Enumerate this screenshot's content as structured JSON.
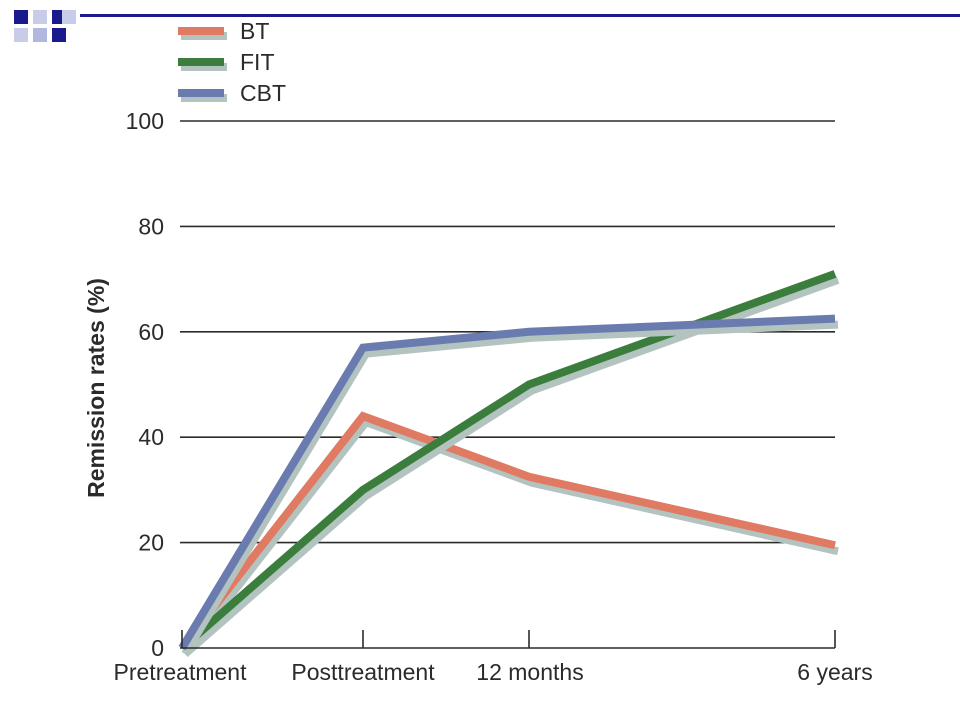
{
  "chart_data": {
    "type": "line",
    "categories": [
      "Pretreatment",
      "Posttreatment",
      "12 months",
      "6 years"
    ],
    "x_positions": [
      0,
      1,
      2,
      5.6
    ],
    "series": [
      {
        "name": "BT",
        "values": [
          0,
          44,
          32.5,
          19.5
        ],
        "color": "#e07a63"
      },
      {
        "name": "FIT",
        "values": [
          0,
          30,
          50,
          71
        ],
        "color": "#3a7d3c"
      },
      {
        "name": "CBT",
        "values": [
          0,
          57,
          60,
          62.5
        ],
        "color": "#6a7bb0"
      }
    ],
    "xlabel": "",
    "ylabel": "Remission rates (%)",
    "ylim": [
      0,
      100
    ],
    "yticks": [
      0,
      20,
      40,
      60,
      80,
      100
    ],
    "grid": true,
    "legend_position": "top-left",
    "shadow_color": "#b3c3c0"
  },
  "decoration": {
    "squares": [
      {
        "color": "#1a1a8c"
      },
      {
        "color": "#c8cce8"
      },
      {
        "color": "#1a1a8c"
      },
      {
        "color": "#c8cce8"
      },
      {
        "color": "#b0b8e0"
      },
      {
        "color": "#1a1a8c"
      },
      {
        "color": "#c8cce8"
      }
    ],
    "rule_color": "#1a1a8c"
  }
}
